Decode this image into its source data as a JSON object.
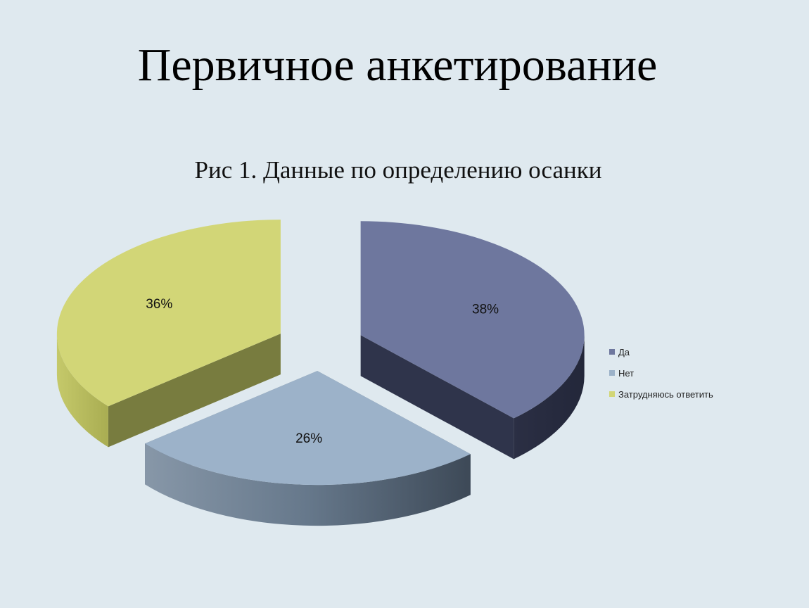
{
  "slide": {
    "title": "Первичное анкетирование",
    "caption": "Рис 1. Данные по определению осанки"
  },
  "chart_data": {
    "type": "pie",
    "title": "",
    "categories": [
      "Да",
      "Нет",
      "Затрудняюсь ответить"
    ],
    "values": [
      38,
      26,
      36
    ],
    "labels": [
      "38%",
      "26%",
      "36%"
    ],
    "colors": {
      "Да": "#6e779e",
      "Нет": "#9cb2c9",
      "Затрудняюсь ответить": "#d2d677"
    },
    "style": "3d-exploded",
    "legend_position": "right"
  }
}
